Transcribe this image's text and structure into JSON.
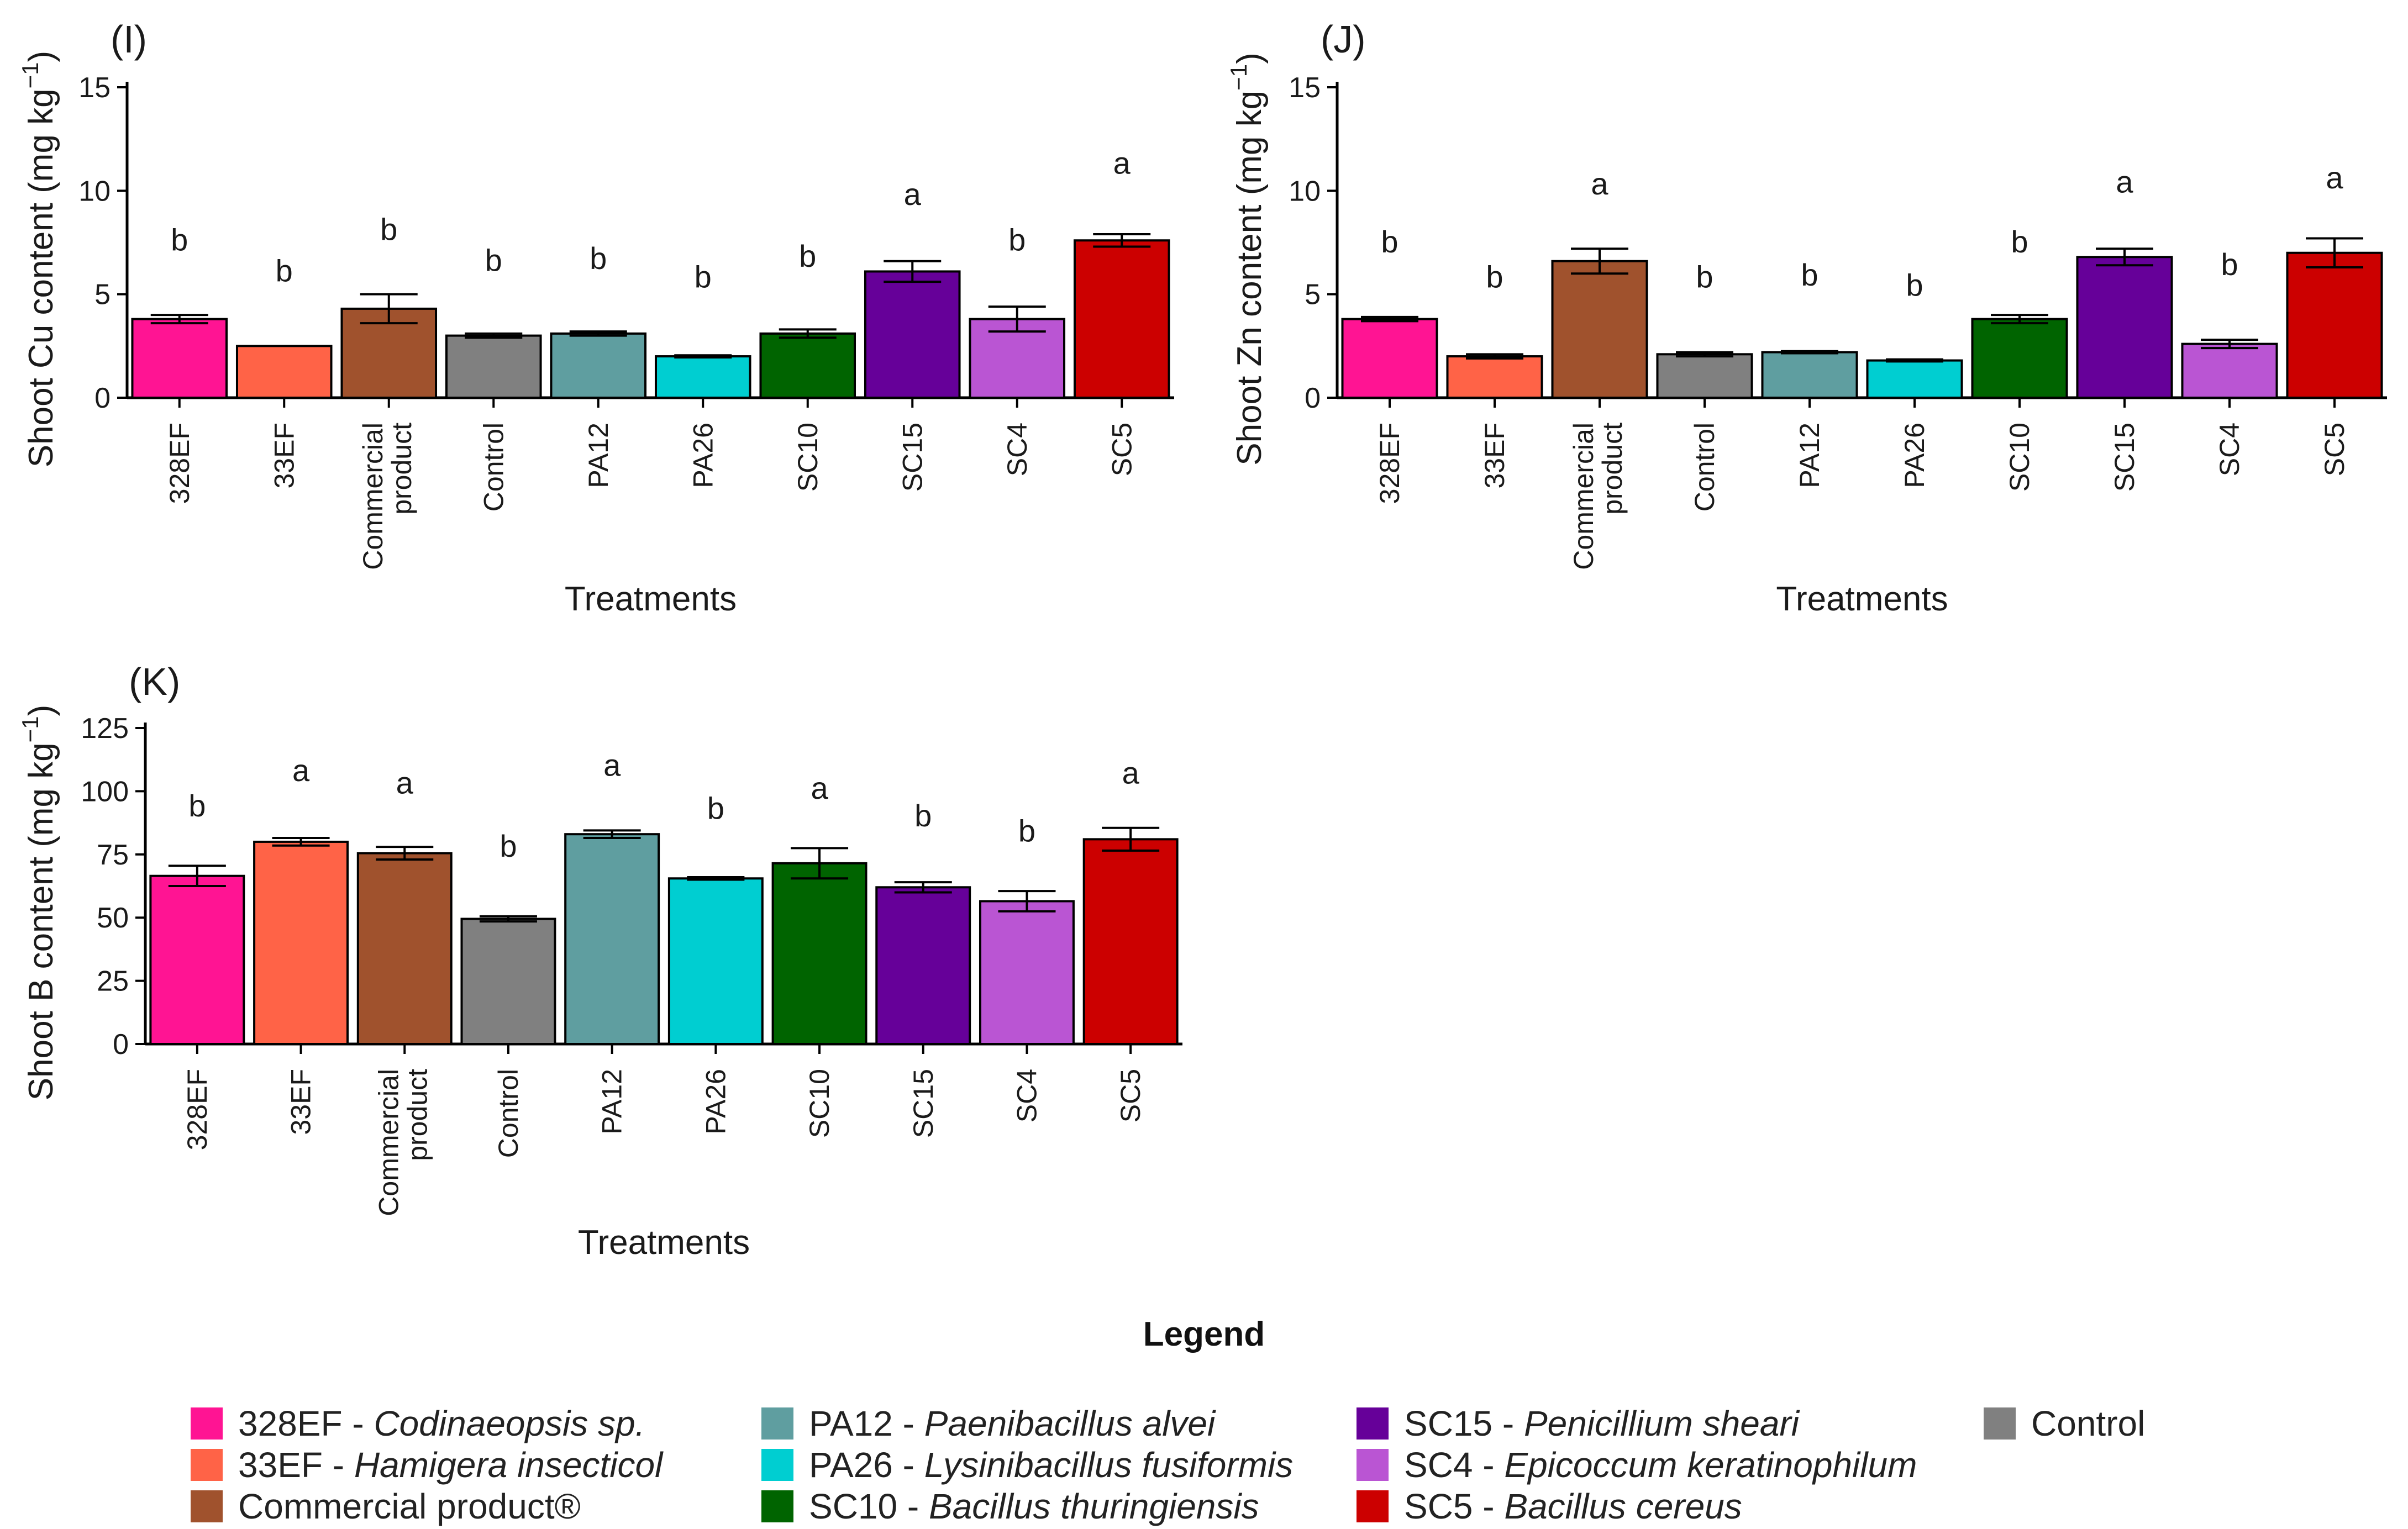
{
  "colors": {
    "328EF": "#FF1493",
    "33EF": "#FF6347",
    "Commercial product": "#A0522D",
    "Control": "#808080",
    "PA12": "#5F9EA0",
    "PA26": "#00CED1",
    "SC10": "#006400",
    "SC15": "#660099",
    "SC4": "#BA55D3",
    "SC5": "#CC0000"
  },
  "chart_data": [
    {
      "type": "bar",
      "panel": "(I)",
      "ylabel": "Shoot Cu content (mg kg",
      "ylabel_sup": "−1",
      "ylabel_close": ")",
      "xlabel": "Treatments",
      "ylim": [
        0,
        15
      ],
      "yticks": [
        0,
        5,
        10,
        15
      ],
      "categories": [
        "328EF",
        "33EF",
        "Commercial product",
        "Control",
        "PA12",
        "PA26",
        "SC10",
        "SC15",
        "SC4",
        "SC5"
      ],
      "values": [
        3.8,
        2.5,
        4.3,
        3.0,
        3.1,
        2.0,
        3.1,
        6.1,
        3.8,
        7.6
      ],
      "errors": [
        0.2,
        0.0,
        0.7,
        0.1,
        0.1,
        0.05,
        0.2,
        0.5,
        0.6,
        0.3
      ],
      "letters": [
        "b",
        "b",
        "b",
        "b",
        "b",
        "b",
        "b",
        "a",
        "b",
        "a"
      ],
      "letter_y": [
        7.6,
        6.1,
        8.1,
        6.6,
        6.7,
        5.8,
        6.8,
        9.8,
        7.6,
        11.3
      ]
    },
    {
      "type": "bar",
      "panel": "(J)",
      "ylabel": "Shoot Zn content (mg kg",
      "ylabel_sup": "−1",
      "ylabel_close": ")",
      "xlabel": "Treatments",
      "ylim": [
        0,
        15
      ],
      "yticks": [
        0,
        5,
        10,
        15
      ],
      "categories": [
        "328EF",
        "33EF",
        "Commercial product",
        "Control",
        "PA12",
        "PA26",
        "SC10",
        "SC15",
        "SC4",
        "SC5"
      ],
      "values": [
        3.8,
        2.0,
        6.6,
        2.1,
        2.2,
        1.8,
        3.8,
        6.8,
        2.6,
        7.0
      ],
      "errors": [
        0.1,
        0.1,
        0.6,
        0.1,
        0.05,
        0.05,
        0.2,
        0.4,
        0.2,
        0.7
      ],
      "letters": [
        "b",
        "b",
        "a",
        "b",
        "b",
        "b",
        "b",
        "a",
        "b",
        "a"
      ],
      "letter_y": [
        7.5,
        5.8,
        10.3,
        5.8,
        5.9,
        5.4,
        7.5,
        10.4,
        6.4,
        10.6
      ]
    },
    {
      "type": "bar",
      "panel": "(K)",
      "ylabel": "Shoot B content (mg kg",
      "ylabel_sup": "−1",
      "ylabel_close": ")",
      "xlabel": "Treatments",
      "ylim": [
        0,
        125
      ],
      "yticks": [
        0,
        25,
        50,
        75,
        100,
        125
      ],
      "categories": [
        "328EF",
        "33EF",
        "Commercial product",
        "Control",
        "PA12",
        "PA26",
        "SC10",
        "SC15",
        "SC4",
        "SC5"
      ],
      "values": [
        66.5,
        80,
        75.5,
        49.5,
        83,
        65.5,
        71.5,
        62,
        56.5,
        81
      ],
      "errors": [
        4,
        1.5,
        2.5,
        1,
        1.5,
        0.5,
        6,
        2,
        4,
        4.5
      ],
      "letters": [
        "b",
        "a",
        "a",
        "b",
        "a",
        "b",
        "a",
        "b",
        "b",
        "a"
      ],
      "letter_y": [
        94,
        108,
        103,
        78,
        110,
        93,
        101,
        90,
        84,
        107
      ]
    }
  ],
  "legend": {
    "title": "Legend",
    "items": [
      {
        "key": "328EF",
        "code": "328EF - ",
        "species": "Codinaeopsis sp."
      },
      {
        "key": "33EF",
        "code": "33EF - ",
        "species": "Hamigera insecticol"
      },
      {
        "key": "Commercial product",
        "code": "Commercial product®",
        "species": ""
      },
      {
        "key": "PA12",
        "code": "PA12 - ",
        "species": "Paenibacillus alvei"
      },
      {
        "key": "PA26",
        "code": "PA26 - ",
        "species": "Lysinibacillus fusiformis"
      },
      {
        "key": "SC10",
        "code": "SC10 - ",
        "species": "Bacillus thuringiensis"
      },
      {
        "key": "SC15",
        "code": "SC15 - ",
        "species": "Penicillium sheari"
      },
      {
        "key": "SC4",
        "code": "SC4 - ",
        "species": "Epicoccum keratinophilum"
      },
      {
        "key": "SC5",
        "code": "SC5 - ",
        "species": "Bacillus cereus"
      },
      {
        "key": "Control",
        "code": "Control",
        "species": ""
      }
    ]
  }
}
